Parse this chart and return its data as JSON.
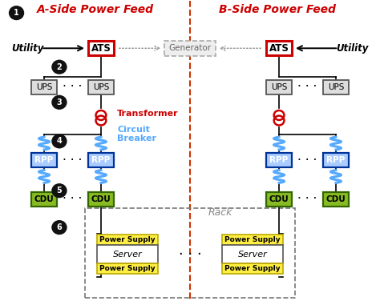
{
  "title_a": "A-Side Power Feed",
  "title_b": "B-Side Power Feed",
  "bg_color": "#ffffff",
  "fig_width": 4.74,
  "fig_height": 3.81,
  "dpi": 100,
  "labels": {
    "utility": "Utility",
    "generator": "Generator",
    "ats": "ATS",
    "ups": "UPS",
    "transformer": "Transformer",
    "circuit_breaker": "Circuit\nBreaker",
    "rpp": "RPP",
    "cdu": "CDU",
    "rack": "Rack",
    "power_supply": "Power Supply",
    "server": "Server"
  },
  "colors": {
    "title": "#cc0000",
    "ats_border": "#cc0000",
    "ats_fill": "#ffffff",
    "ups_border": "#555555",
    "ups_fill": "#dddddd",
    "generator_border": "#aaaaaa",
    "generator_fill": "#eeeeee",
    "rpp_border": "#003399",
    "rpp_fill": "#aaccff",
    "cdu_border": "#336600",
    "cdu_fill": "#88bb22",
    "ps_border": "#bbaa00",
    "ps_fill": "#ffee44",
    "server_fill": "#ffffff",
    "server_border": "#555555",
    "transformer": "#cc0000",
    "circuit_breaker": "#55aaff",
    "center_line": "#cc3300",
    "black": "#000000",
    "gray": "#999999",
    "step_bg": "#111111",
    "step_fg": "#ffffff",
    "dots": "#000000"
  }
}
